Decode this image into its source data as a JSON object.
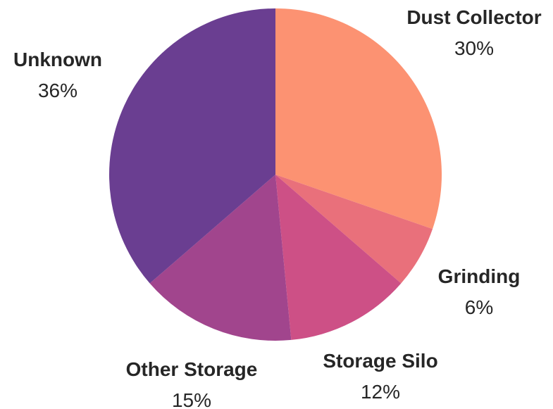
{
  "chart_data": {
    "type": "pie",
    "start_angle_deg": 90,
    "direction": "clockwise",
    "slices": [
      {
        "label": "Dust Collector",
        "value": 30,
        "display": "30%",
        "color": "#FC9272"
      },
      {
        "label": "Grinding",
        "value": 6,
        "display": "6%",
        "color": "#E9707B"
      },
      {
        "label": "Storage Silo",
        "value": 12,
        "display": "12%",
        "color": "#CD5086"
      },
      {
        "label": "Other Storage",
        "value": 15,
        "display": "15%",
        "color": "#A1458D"
      },
      {
        "label": "Unknown",
        "value": 36,
        "display": "36%",
        "color": "#6A3E91"
      }
    ]
  }
}
